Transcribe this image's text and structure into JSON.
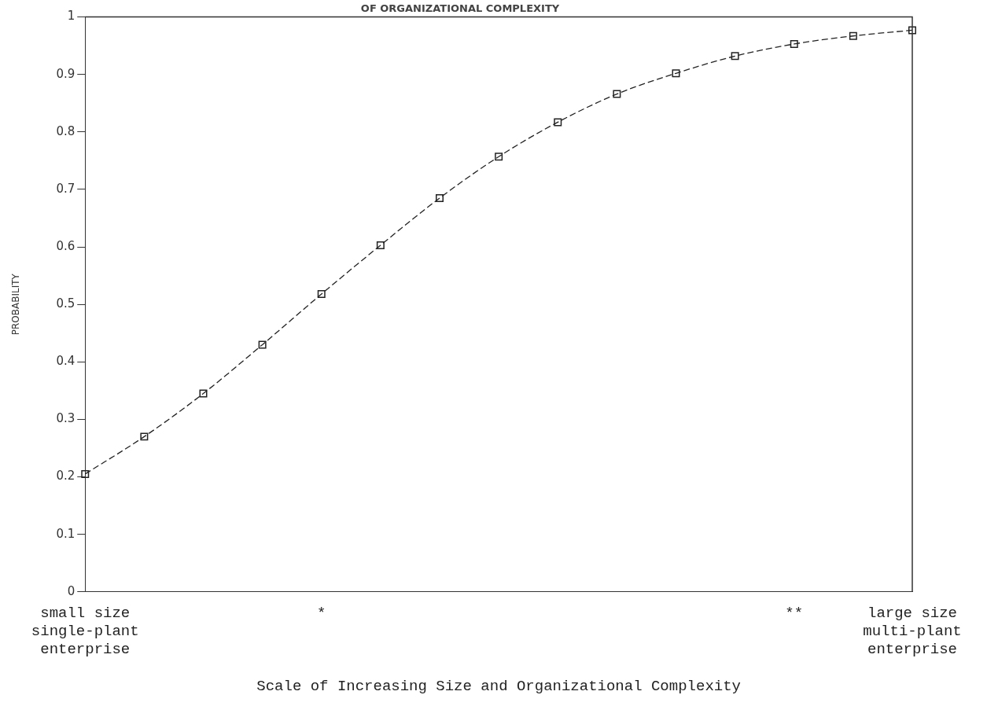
{
  "chart_data": {
    "type": "line",
    "title": "OF ORGANIZATIONAL COMPLEXITY",
    "xlabel": "Scale of Increasing Size and Organizational Complexity",
    "ylabel": "PROBABILITY",
    "categories": [
      "small size\nsingle-plant\nenterprise",
      null,
      null,
      null,
      "*",
      null,
      null,
      null,
      null,
      null,
      null,
      null,
      "**",
      null,
      "large size\nmulti-plant\nenterprise"
    ],
    "series": [
      {
        "color": "#222222",
        "values": [
          0.205,
          0.27,
          0.345,
          0.43,
          0.518,
          0.603,
          0.685,
          0.757,
          0.817,
          0.866,
          0.902,
          0.932,
          0.953,
          0.967,
          0.977
        ]
      }
    ],
    "ylim": [
      0,
      1
    ],
    "yticks": [
      0,
      0.1,
      0.2,
      0.3,
      0.4,
      0.5,
      0.6,
      0.7,
      0.8,
      0.9,
      1
    ],
    "grid": false,
    "legend": false,
    "marker": "square",
    "line_style": "dashed"
  }
}
